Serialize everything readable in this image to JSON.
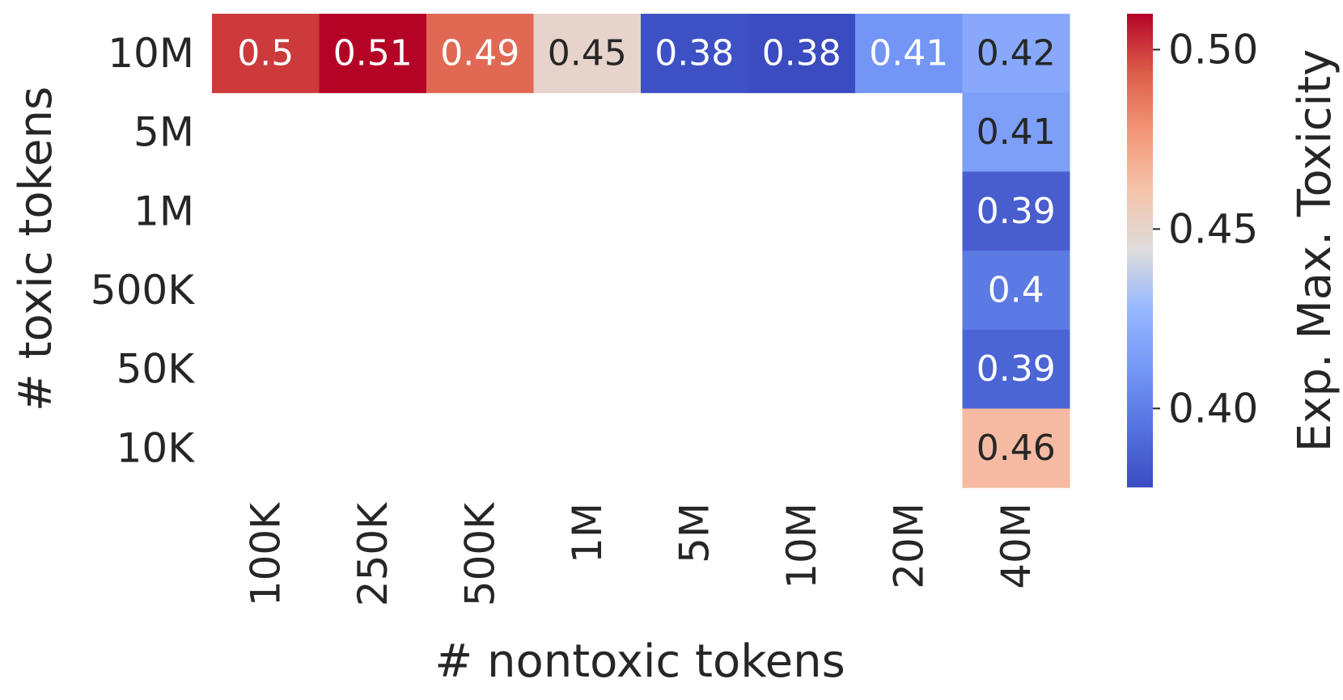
{
  "chart_data": {
    "type": "heatmap",
    "xlabel": "# nontoxic tokens",
    "ylabel": "# toxic tokens",
    "x_categories": [
      "100K",
      "250K",
      "500K",
      "1M",
      "5M",
      "10M",
      "20M",
      "40M"
    ],
    "y_categories": [
      "10M",
      "5M",
      "1M",
      "500K",
      "50K",
      "10K"
    ],
    "cells": [
      {
        "x": "100K",
        "y": "10M",
        "value": 0.5,
        "label": "0.5"
      },
      {
        "x": "250K",
        "y": "10M",
        "value": 0.51,
        "label": "0.51"
      },
      {
        "x": "500K",
        "y": "10M",
        "value": 0.49,
        "label": "0.49"
      },
      {
        "x": "1M",
        "y": "10M",
        "value": 0.45,
        "label": "0.45"
      },
      {
        "x": "5M",
        "y": "10M",
        "value": 0.38,
        "label": "0.38"
      },
      {
        "x": "10M",
        "y": "10M",
        "value": 0.378,
        "label": "0.38"
      },
      {
        "x": "20M",
        "y": "10M",
        "value": 0.41,
        "label": "0.41"
      },
      {
        "x": "40M",
        "y": "10M",
        "value": 0.42,
        "label": "0.42"
      },
      {
        "x": "40M",
        "y": "5M",
        "value": 0.415,
        "label": "0.41"
      },
      {
        "x": "40M",
        "y": "1M",
        "value": 0.386,
        "label": "0.39"
      },
      {
        "x": "40M",
        "y": "500K",
        "value": 0.398,
        "label": "0.4"
      },
      {
        "x": "40M",
        "y": "50K",
        "value": 0.389,
        "label": "0.39"
      },
      {
        "x": "40M",
        "y": "10K",
        "value": 0.464,
        "label": "0.46"
      }
    ],
    "colormap": "coolwarm",
    "colorbar": {
      "label": "Exp. Max. Toxicity",
      "vmin": 0.378,
      "vmax": 0.51,
      "ticks": [
        0.4,
        0.45,
        0.5
      ],
      "tick_labels": [
        "0.40",
        "0.45",
        "0.50"
      ]
    },
    "grid": false
  }
}
